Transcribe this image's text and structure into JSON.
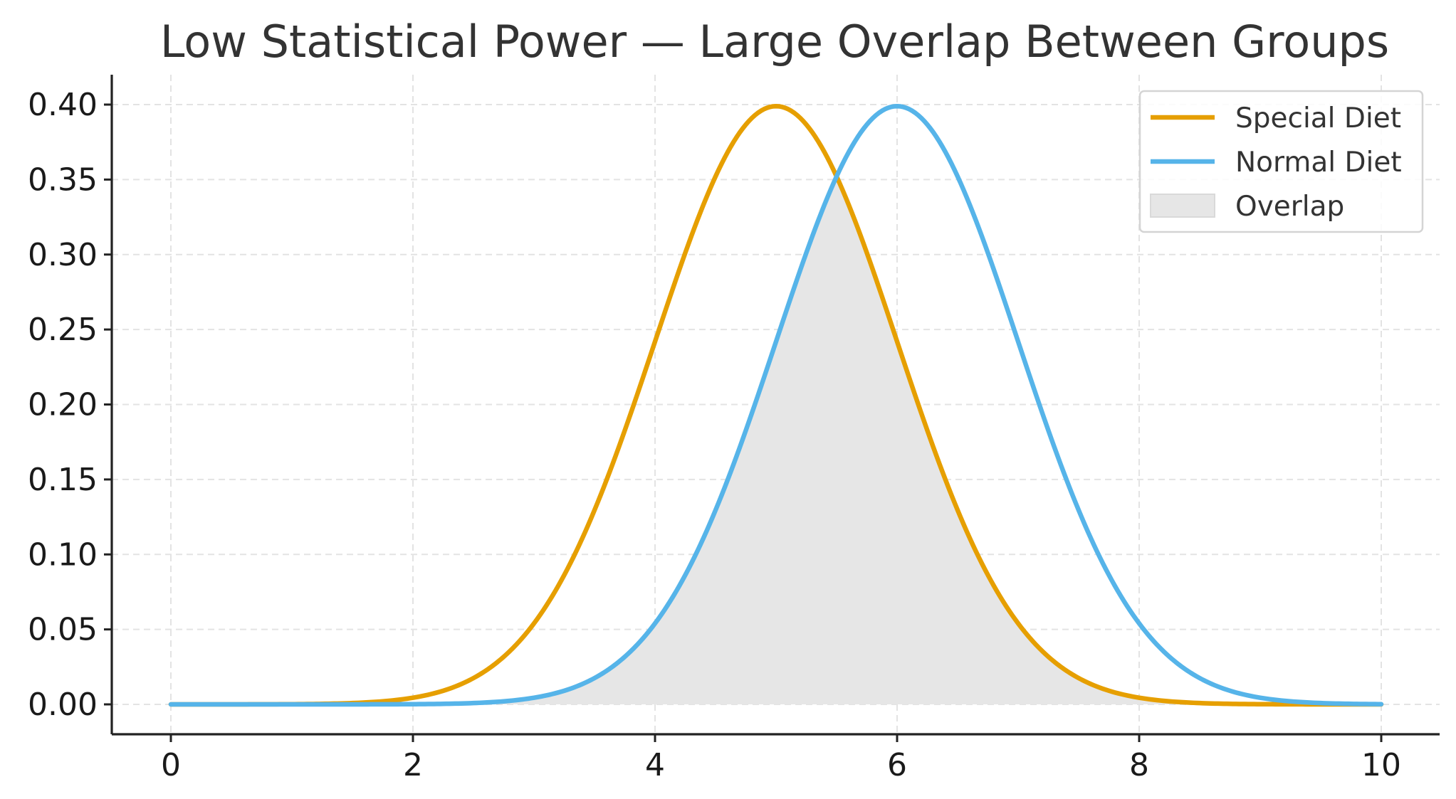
{
  "chart_data": {
    "type": "line",
    "title": "Low Statistical Power — Large Overlap Between Groups",
    "xlabel": "",
    "ylabel": "",
    "xlim": [
      0,
      10
    ],
    "ylim": [
      0,
      0.4
    ],
    "x_ticks": [
      0,
      2,
      4,
      6,
      8,
      10
    ],
    "x_tick_labels": [
      "0",
      "2",
      "4",
      "6",
      "8",
      "10"
    ],
    "y_ticks": [
      0.0,
      0.05,
      0.1,
      0.15,
      0.2,
      0.25,
      0.3,
      0.35,
      0.4
    ],
    "y_tick_labels": [
      "0.00",
      "0.05",
      "0.10",
      "0.15",
      "0.20",
      "0.25",
      "0.30",
      "0.35",
      "0.40"
    ],
    "grid": true,
    "legend_position": "top-right",
    "series": [
      {
        "name": "Special Diet",
        "color": "#E69F00",
        "x": [
          0,
          0.5,
          1,
          1.5,
          2,
          2.5,
          3,
          3.25,
          3.5,
          3.75,
          4,
          4.25,
          4.5,
          4.75,
          5,
          5.25,
          5.5,
          5.75,
          6,
          6.25,
          6.5,
          6.75,
          7,
          7.5,
          8,
          8.5,
          9,
          9.5,
          10
        ],
        "y": [
          0.0,
          0.0,
          0.0001,
          0.0009,
          0.0044,
          0.0175,
          0.054,
          0.0863,
          0.1295,
          0.1826,
          0.242,
          0.3011,
          0.3521,
          0.3867,
          0.3989,
          0.3867,
          0.3521,
          0.3011,
          0.242,
          0.1826,
          0.1295,
          0.0863,
          0.054,
          0.0175,
          0.0044,
          0.0009,
          0.0001,
          0.0,
          0.0
        ]
      },
      {
        "name": "Normal Diet",
        "color": "#56B4E9",
        "x": [
          0,
          0.5,
          1,
          1.5,
          2,
          2.5,
          3,
          3.5,
          4,
          4.25,
          4.5,
          4.75,
          5,
          5.25,
          5.5,
          5.75,
          6,
          6.25,
          6.5,
          6.75,
          7,
          7.25,
          7.5,
          7.75,
          8,
          8.5,
          9,
          9.5,
          10
        ],
        "y": [
          0.0,
          0.0,
          0.0,
          0.0,
          0.0001,
          0.0009,
          0.0044,
          0.0175,
          0.054,
          0.0863,
          0.1295,
          0.1826,
          0.242,
          0.3011,
          0.3521,
          0.3867,
          0.3989,
          0.3867,
          0.3521,
          0.3011,
          0.242,
          0.1826,
          0.1295,
          0.0863,
          0.054,
          0.0175,
          0.0044,
          0.0009,
          0.0001
        ]
      }
    ],
    "fill": {
      "name": "Overlap",
      "color": "#e6e6e6",
      "rule": "min of both series"
    }
  }
}
